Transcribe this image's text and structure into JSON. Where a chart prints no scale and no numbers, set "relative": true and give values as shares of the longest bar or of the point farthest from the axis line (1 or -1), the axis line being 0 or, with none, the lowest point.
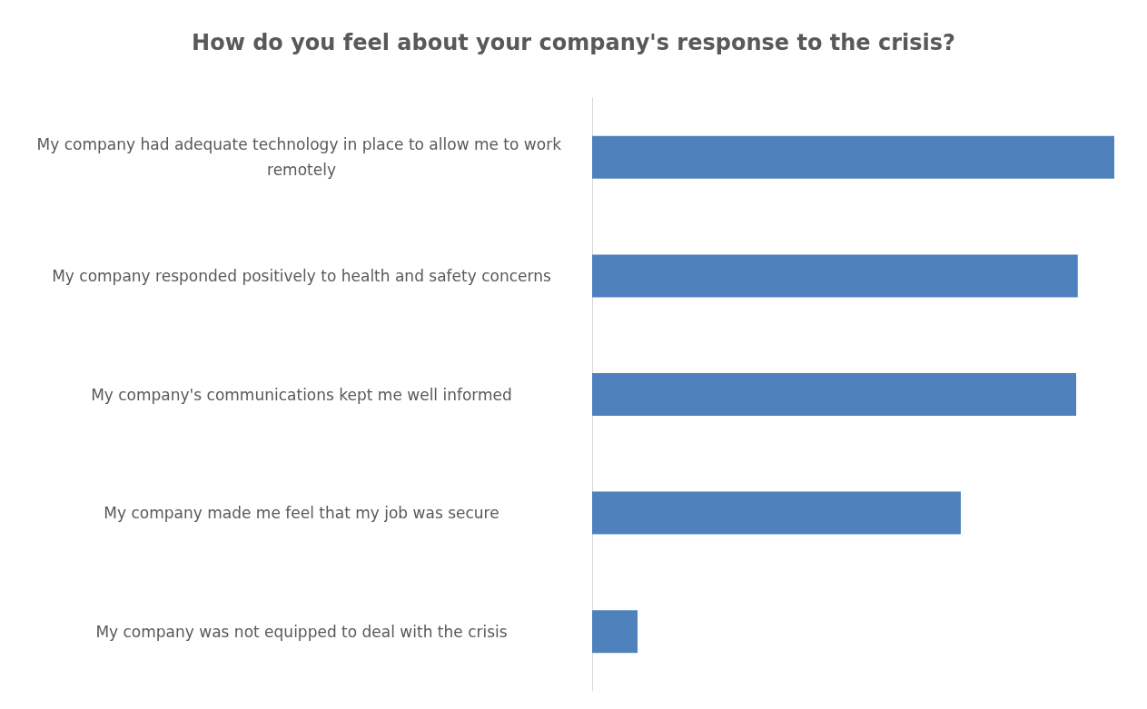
{
  "chart_data": {
    "type": "bar",
    "orientation": "horizontal",
    "relative": true,
    "title": "How do you feel about your company's response to the crisis?",
    "categories": [
      "My company had adequate technology in place to allow me to work remotely",
      "My company responded positively to health and safety concerns",
      "My company's communications kept me well informed",
      "My company made me feel that my job was secure",
      "My company was not equipped to deal with the crisis"
    ],
    "values": [
      1,
      0.93,
      0.927,
      0.706,
      0.087
    ],
    "color": "#4f81bd"
  }
}
